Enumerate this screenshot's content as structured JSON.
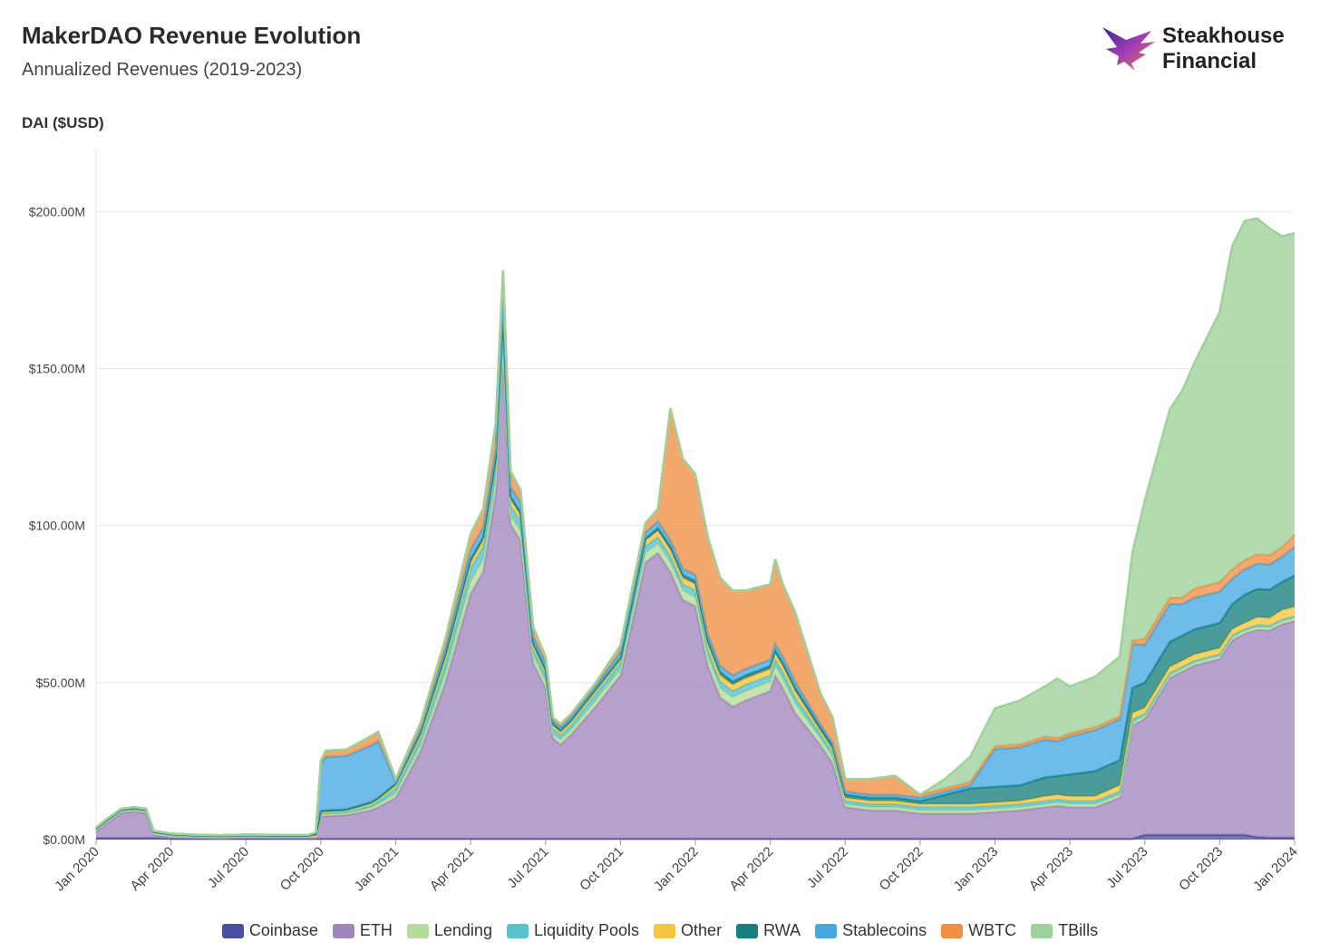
{
  "header": {
    "title": "MakerDAO Revenue Evolution",
    "subtitle": "Annualized Revenues (2019-2023)",
    "y_axis_label": "DAI ($USD)"
  },
  "logo": {
    "line1": "Steakhouse",
    "line2": "Financial"
  },
  "chart_data": {
    "type": "area",
    "stacked": true,
    "ylabel": "DAI ($USD)",
    "ylim": [
      0,
      220
    ],
    "y_ticks": [
      "$0.00M",
      "$50.00M",
      "$100.00M",
      "$150.00M",
      "$200.00M"
    ],
    "y_tick_values": [
      0,
      50,
      100,
      150,
      200
    ],
    "x_ticks": [
      "Jan 2020",
      "Apr 2020",
      "Jul 2020",
      "Oct 2020",
      "Jan 2021",
      "Apr 2021",
      "Jul 2021",
      "Oct 2021",
      "Jan 2022",
      "Apr 2022",
      "Jul 2022",
      "Oct 2022",
      "Jan 2023",
      "Apr 2023",
      "Jul 2023",
      "Oct 2023",
      "Jan 2024"
    ],
    "x_tick_months": [
      0,
      3,
      6,
      9,
      12,
      15,
      18,
      21,
      24,
      27,
      30,
      33,
      36,
      39,
      42,
      45,
      48
    ],
    "grid": "horizontal",
    "legend_position": "bottom",
    "x_months": [
      0,
      0.3,
      1,
      1.5,
      2,
      2.3,
      3,
      4,
      5,
      6,
      7,
      8,
      8.5,
      8.8,
      9,
      9.2,
      10,
      11,
      11.3,
      12,
      13,
      14,
      15,
      15.5,
      16,
      16.3,
      16.6,
      17,
      17.5,
      18,
      18.3,
      18.6,
      19,
      20,
      21,
      22,
      22.5,
      23,
      23.5,
      24,
      24.5,
      25,
      25.5,
      26,
      27,
      27.2,
      27.5,
      28,
      29,
      29.5,
      30,
      31,
      32,
      33,
      34,
      35,
      36,
      37,
      38,
      38.5,
      39,
      40,
      41,
      41.5,
      42,
      43,
      43.5,
      44,
      45,
      45.5,
      46,
      46.5,
      47,
      47.5,
      48
    ],
    "series": [
      {
        "name": "Coinbase",
        "color": "#4a4ea0",
        "values": [
          0.5,
          0.5,
          0.5,
          0.5,
          0.5,
          0.5,
          0.3,
          0.3,
          0.3,
          0.3,
          0.3,
          0.3,
          0.3,
          0.3,
          0.3,
          0.3,
          0.3,
          0.3,
          0.3,
          0.3,
          0.3,
          0.3,
          0.3,
          0.3,
          0.3,
          0.3,
          0.3,
          0.3,
          0.3,
          0.3,
          0.3,
          0.3,
          0.3,
          0.3,
          0.3,
          0.3,
          0.3,
          0.3,
          0.3,
          0.3,
          0.3,
          0.3,
          0.3,
          0.3,
          0.3,
          0.3,
          0.3,
          0.3,
          0.3,
          0.3,
          0.3,
          0.3,
          0.3,
          0.3,
          0.3,
          0.3,
          0.3,
          0.3,
          0.3,
          0.3,
          0.3,
          0.3,
          0.3,
          0.3,
          1.5,
          1.5,
          1.5,
          1.5,
          1.5,
          1.5,
          1.5,
          0.8,
          0.6,
          0.6,
          0.6
        ]
      },
      {
        "name": "ETH",
        "color": "#a086bc",
        "values": [
          2,
          4,
          8,
          8.5,
          8,
          1,
          0.5,
          0.3,
          0.2,
          0.4,
          0.3,
          0.3,
          0.3,
          0.3,
          7,
          7.2,
          7.5,
          9,
          10,
          13,
          28,
          50,
          78,
          85,
          110,
          155,
          100,
          95,
          56,
          48,
          32,
          30,
          33,
          42,
          52,
          88,
          91,
          85,
          76,
          74,
          55,
          45,
          42,
          44,
          47,
          52,
          48,
          40,
          30,
          24,
          10,
          9,
          9,
          8,
          8,
          8,
          8.5,
          9,
          10,
          10.5,
          10,
          10,
          13,
          36,
          37,
          50,
          52,
          54,
          56,
          62,
          64,
          66,
          66,
          68,
          69
        ]
      },
      {
        "name": "Lending",
        "color": "#b5dc9a",
        "values": [
          0.5,
          0.5,
          0.5,
          0.5,
          0.5,
          0.5,
          0.4,
          0.3,
          0.3,
          0.3,
          0.3,
          0.3,
          0.3,
          0.3,
          0.5,
          0.5,
          0.5,
          0.8,
          1,
          1.5,
          2,
          3,
          4,
          4,
          4,
          4,
          3,
          3,
          2.5,
          2,
          1.5,
          1.5,
          1.5,
          2,
          2,
          3,
          3,
          3,
          3,
          3,
          3,
          3,
          3,
          3,
          3,
          3,
          3,
          3,
          2,
          2,
          1,
          1,
          1,
          1,
          1,
          1,
          1,
          1,
          1,
          1,
          1,
          1,
          1,
          1,
          1,
          1,
          1,
          1,
          1,
          1,
          1,
          1,
          1,
          1,
          1
        ]
      },
      {
        "name": "Liquidity Pools",
        "color": "#56c3cf",
        "values": [
          0.3,
          0.3,
          0.3,
          0.3,
          0.3,
          0.3,
          0.3,
          0.2,
          0.2,
          0.2,
          0.2,
          0.2,
          0.2,
          0.2,
          0.5,
          0.5,
          0.5,
          0.8,
          1,
          1.5,
          2,
          3,
          4,
          4,
          4,
          4,
          3,
          3,
          2,
          2,
          1.5,
          1.5,
          1.5,
          2,
          2,
          2,
          2,
          2,
          2,
          2,
          2,
          2,
          2,
          2,
          2,
          2,
          2,
          2,
          1.5,
          1.5,
          1,
          1,
          1,
          1,
          1,
          1,
          1,
          1,
          1,
          1,
          1,
          1,
          1,
          1,
          0.5,
          0.5,
          0.5,
          0.5,
          0.5,
          0.5,
          0.5,
          0.5,
          0.5,
          0.5,
          0.5
        ]
      },
      {
        "name": "Other",
        "color": "#f7c540",
        "values": [
          0.2,
          0.2,
          0.2,
          0.2,
          0.2,
          0.2,
          0.2,
          0.2,
          0.2,
          0.2,
          0.2,
          0.2,
          0.2,
          0.2,
          0.3,
          0.3,
          0.3,
          0.5,
          0.5,
          1,
          1,
          2,
          2,
          2,
          2,
          3,
          2,
          2,
          1,
          1,
          1,
          1,
          1,
          1,
          1,
          2,
          2,
          2,
          2,
          2,
          2,
          2,
          2,
          2,
          2,
          2,
          2,
          2,
          1,
          1,
          1,
          1,
          1,
          1,
          1,
          1,
          1,
          1,
          1.5,
          1.5,
          1.5,
          1.5,
          2,
          2,
          2,
          2,
          2,
          2,
          2,
          2,
          2,
          2.5,
          2.5,
          3,
          3
        ]
      },
      {
        "name": "RWA",
        "color": "#17807e",
        "values": [
          0,
          0,
          0,
          0,
          0,
          0,
          0,
          0,
          0,
          0,
          0,
          0,
          0,
          0.5,
          0.5,
          0.5,
          0.5,
          0.5,
          0.5,
          0.5,
          1,
          1,
          1,
          1,
          1,
          1,
          1,
          1,
          1,
          1,
          0.5,
          0.5,
          0.5,
          0.5,
          0.5,
          0.5,
          1,
          1,
          1,
          1,
          1,
          1,
          1,
          1,
          1,
          1,
          1,
          1,
          1,
          1,
          1,
          1,
          1,
          1,
          3,
          5,
          5,
          5,
          6,
          6,
          7,
          8,
          8,
          8,
          8,
          8,
          8,
          8,
          8,
          8,
          9,
          9,
          9,
          9,
          10
        ]
      },
      {
        "name": "Stablecoins",
        "color": "#45a9e0",
        "values": [
          0.3,
          0.3,
          0.3,
          0.3,
          0.3,
          0.3,
          0.2,
          0.2,
          0.2,
          0.2,
          0.2,
          0.2,
          0.2,
          0.5,
          15,
          17,
          17,
          18,
          18,
          0.5,
          1,
          2,
          3,
          3,
          3,
          5,
          3,
          3,
          2,
          2,
          1,
          1,
          1,
          1,
          2,
          2,
          2,
          2,
          2,
          2,
          2,
          2,
          2,
          2,
          2,
          2,
          2,
          2,
          1,
          1,
          1,
          1,
          1,
          1,
          1,
          1,
          12,
          12,
          12,
          11,
          12,
          13,
          13,
          14,
          12,
          12,
          10,
          10,
          10,
          8,
          8,
          8,
          8,
          8,
          9
        ]
      },
      {
        "name": "WBTC",
        "color": "#f09044",
        "values": [
          0,
          0,
          0,
          0,
          0,
          0,
          0,
          0,
          0,
          0,
          0,
          0,
          0,
          0,
          1,
          2,
          2,
          3,
          3,
          1,
          2,
          3,
          5,
          6,
          8,
          9,
          5,
          4,
          3,
          2,
          1,
          1,
          1,
          1,
          2,
          3,
          4,
          42,
          35,
          32,
          31,
          28,
          27,
          25,
          24,
          27,
          23,
          22,
          10,
          8,
          4,
          5,
          6,
          1,
          1,
          1,
          1,
          1,
          1,
          1,
          1,
          1,
          1,
          1,
          2,
          2,
          2,
          3,
          3,
          3,
          3,
          3,
          3,
          3,
          4
        ]
      },
      {
        "name": "TBills",
        "color": "#9fd19a",
        "values": [
          0,
          0,
          0,
          0,
          0,
          0,
          0,
          0,
          0,
          0,
          0,
          0,
          0,
          0,
          0,
          0,
          0,
          0,
          0,
          0,
          0,
          0,
          0,
          0,
          0,
          0,
          0,
          0,
          0,
          0,
          0,
          0,
          0,
          0,
          0,
          0,
          0,
          0,
          0,
          0,
          0,
          0,
          0,
          0,
          0,
          0,
          0,
          0,
          0,
          0,
          0,
          0,
          0,
          0,
          3,
          8,
          12,
          14,
          16,
          19,
          15,
          16,
          19,
          28,
          44,
          60,
          66,
          72,
          86,
          103,
          108,
          107,
          104,
          99,
          96
        ]
      }
    ]
  }
}
